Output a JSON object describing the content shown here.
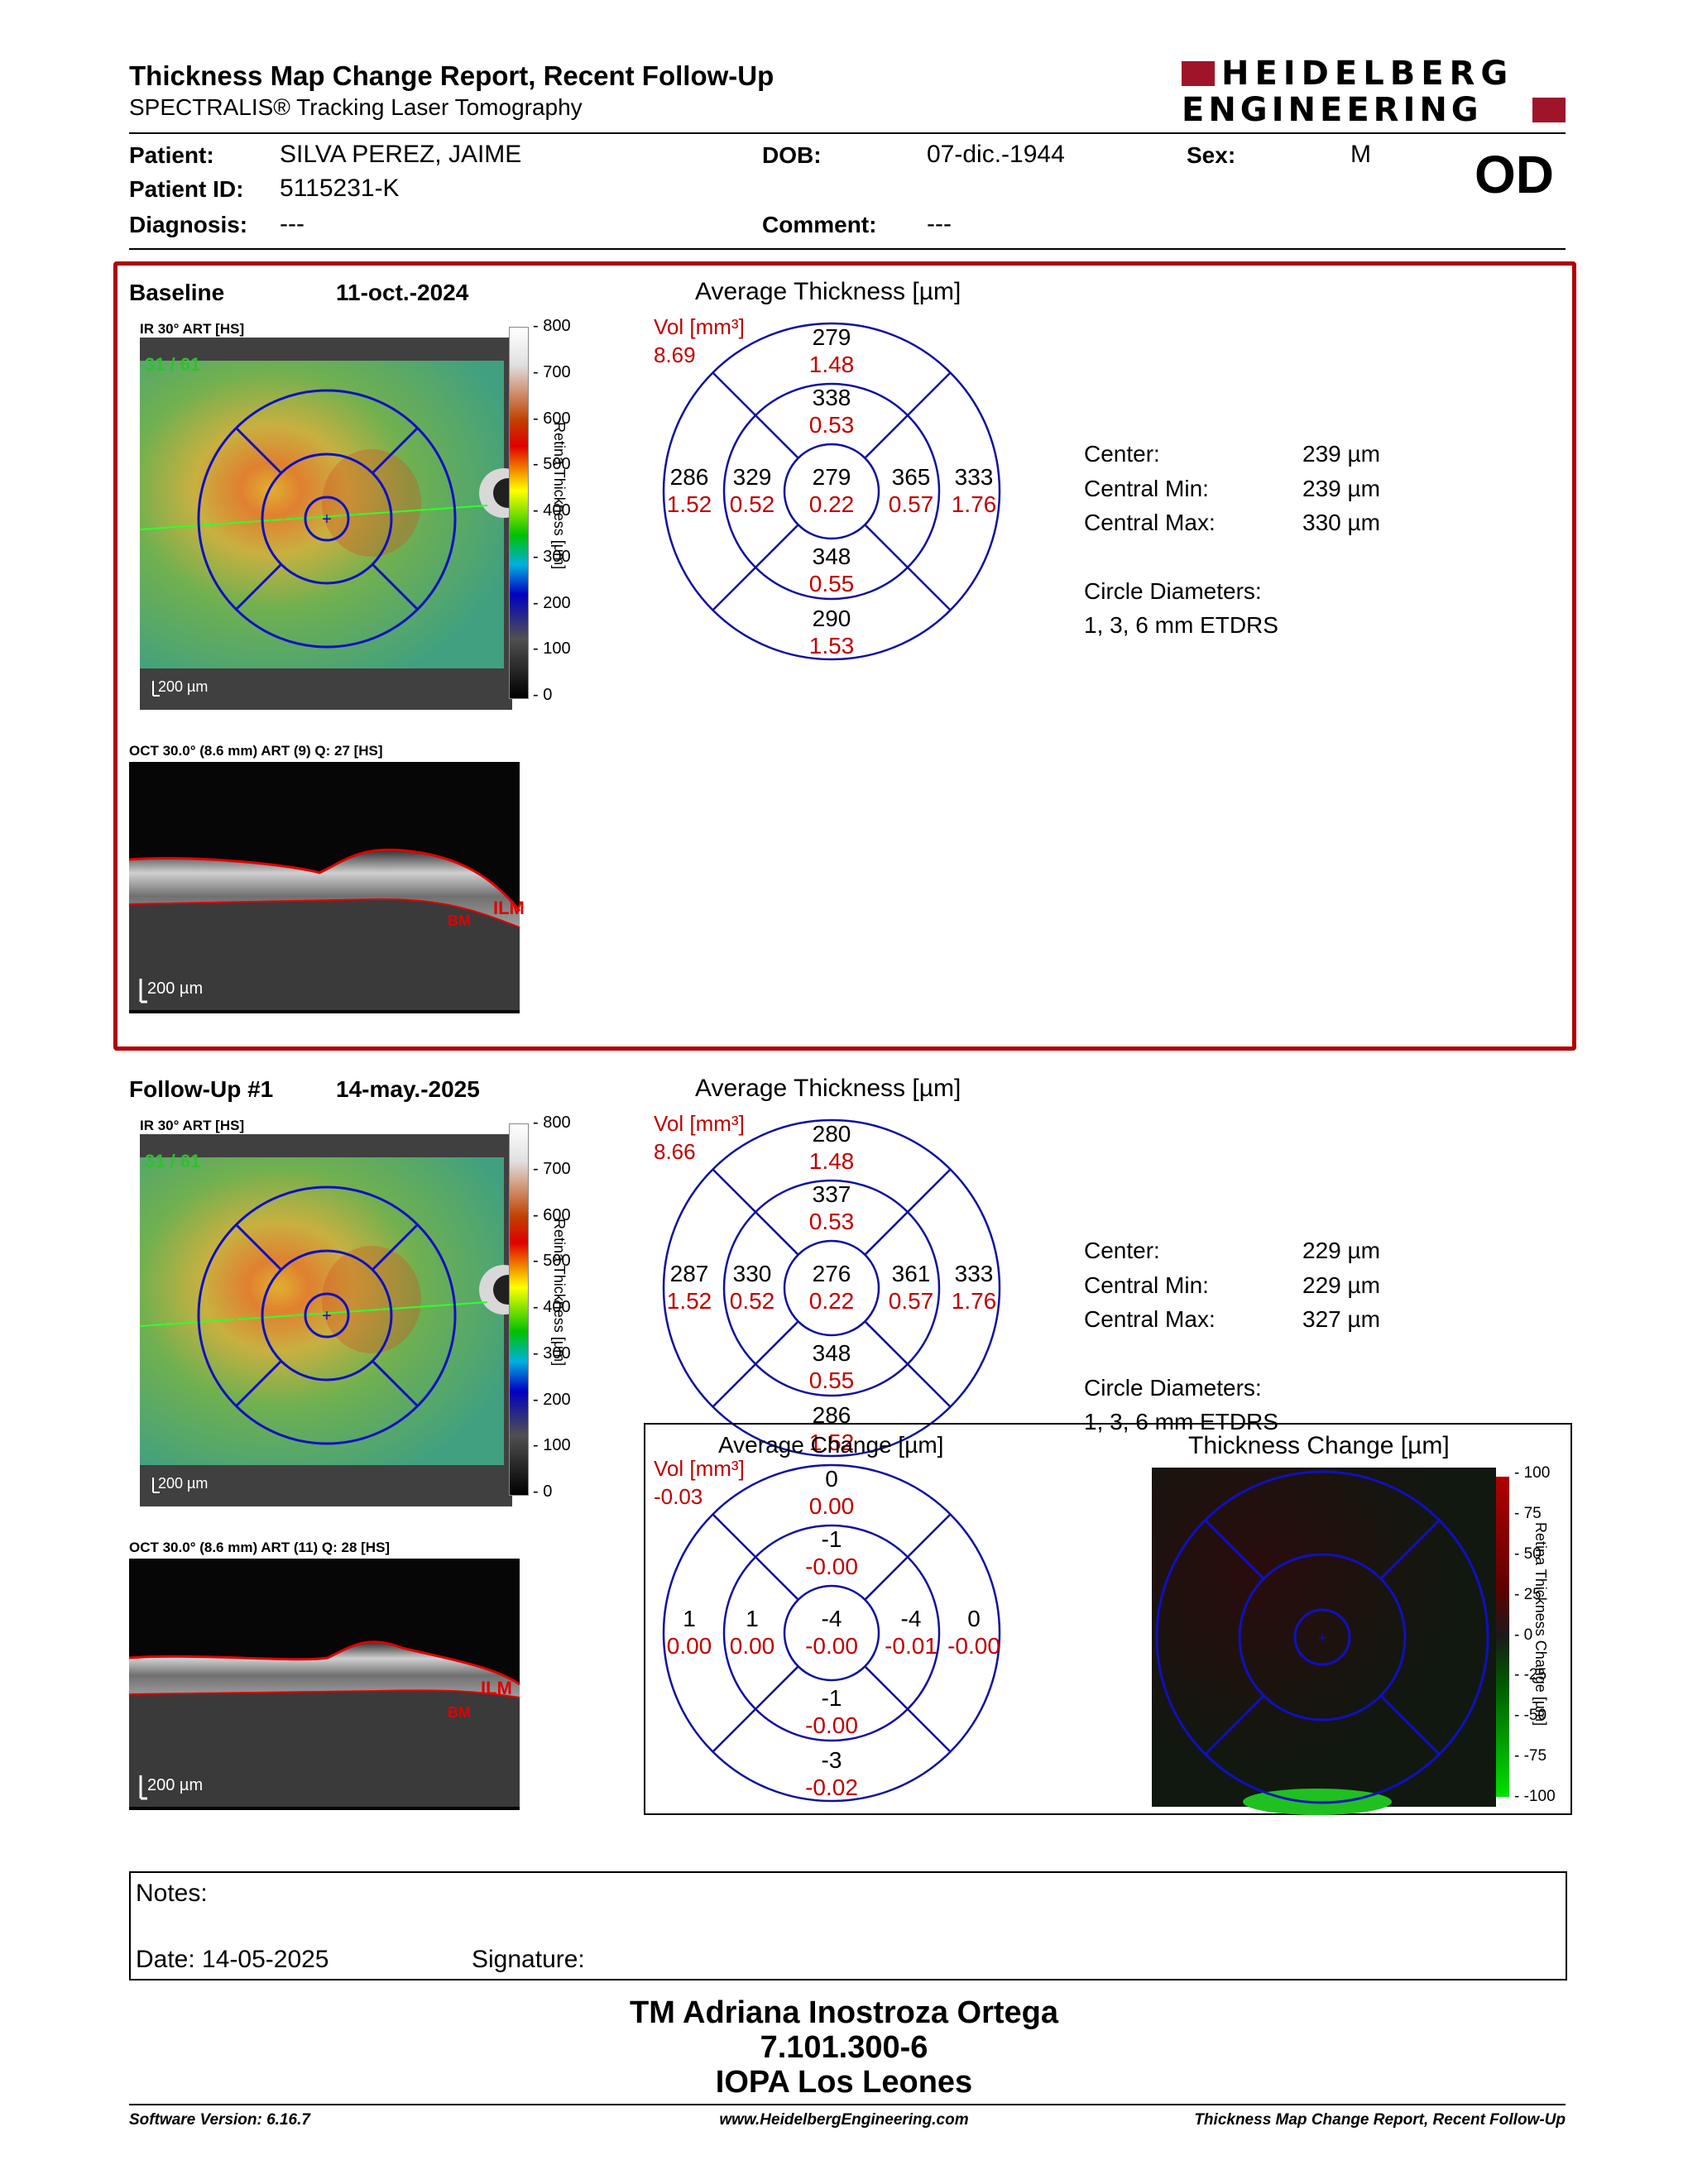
{
  "header": {
    "title": "Thickness Map Change Report, Recent Follow-Up",
    "subtitle": "SPECTRALIS® Tracking Laser Tomography",
    "logo_line1": "HEIDELBERG",
    "logo_line2": "ENGINEERING"
  },
  "patient": {
    "name_label": "Patient:",
    "name": "SILVA PEREZ, JAIME",
    "id_label": "Patient ID:",
    "id": "5115231-K",
    "diagnosis_label": "Diagnosis:",
    "diagnosis": "---",
    "dob_label": "DOB:",
    "dob": "07-dic.-1944",
    "comment_label": "Comment:",
    "comment": "---",
    "sex_label": "Sex:",
    "sex": "M",
    "eye": "OD"
  },
  "baseline": {
    "label": "Baseline",
    "date": "11-oct.-2024",
    "ir_label": "IR 30° ART [HS]",
    "ir_counter": "31 / 61",
    "scale_bar": "200 µm",
    "oct_label": "OCT 30.0° (8.6 mm) ART (9) Q: 27 [HS]",
    "oct_scale": "200 µm",
    "ilm": "ILM",
    "bm": "BM",
    "colorbar_ticks": [
      "800",
      "700",
      "600",
      "500",
      "400",
      "300",
      "200",
      "100",
      "0"
    ],
    "colorbar_title": "Retina Thickness [µm]",
    "chart_title": "Average Thickness [µm]",
    "vol_label": "Vol [mm³]",
    "vol_value": "8.69",
    "grid": {
      "outer_superior": {
        "t": "279",
        "v": "1.48"
      },
      "inner_superior": {
        "t": "338",
        "v": "0.53"
      },
      "outer_nasal_left": {
        "t": "286",
        "v": "1.52"
      },
      "inner_left": {
        "t": "329",
        "v": "0.52"
      },
      "center": {
        "t": "279",
        "v": "0.22"
      },
      "inner_right": {
        "t": "365",
        "v": "0.57"
      },
      "outer_right": {
        "t": "333",
        "v": "1.76"
      },
      "inner_inferior": {
        "t": "348",
        "v": "0.55"
      },
      "outer_inferior": {
        "t": "290",
        "v": "1.53"
      }
    },
    "stats": {
      "center_label": "Center:",
      "center": "239 µm",
      "min_label": "Central Min:",
      "min": "239 µm",
      "max_label": "Central Max:",
      "max": "330 µm",
      "diam_label": "Circle Diameters:",
      "diam": "1, 3, 6 mm ETDRS"
    }
  },
  "followup": {
    "label": "Follow-Up #1",
    "date": "14-may.-2025",
    "ir_label": "IR 30° ART [HS]",
    "ir_counter": "31 / 61",
    "scale_bar": "200 µm",
    "oct_label": "OCT 30.0° (8.6 mm) ART (11) Q: 28 [HS]",
    "oct_scale": "200 µm",
    "ilm": "ILM",
    "bm": "BM",
    "colorbar_ticks": [
      "800",
      "700",
      "600",
      "500",
      "400",
      "300",
      "200",
      "100",
      "0"
    ],
    "colorbar_title": "Retina Thickness [µm]",
    "chart_title": "Average Thickness [µm]",
    "vol_label": "Vol [mm³]",
    "vol_value": "8.66",
    "grid": {
      "outer_superior": {
        "t": "280",
        "v": "1.48"
      },
      "inner_superior": {
        "t": "337",
        "v": "0.53"
      },
      "outer_nasal_left": {
        "t": "287",
        "v": "1.52"
      },
      "inner_left": {
        "t": "330",
        "v": "0.52"
      },
      "center": {
        "t": "276",
        "v": "0.22"
      },
      "inner_right": {
        "t": "361",
        "v": "0.57"
      },
      "outer_right": {
        "t": "333",
        "v": "1.76"
      },
      "inner_inferior": {
        "t": "348",
        "v": "0.55"
      },
      "outer_inferior": {
        "t": "286",
        "v": "1.52"
      }
    },
    "stats": {
      "center_label": "Center:",
      "center": "229 µm",
      "min_label": "Central Min:",
      "min": "229 µm",
      "max_label": "Central Max:",
      "max": "327 µm",
      "diam_label": "Circle Diameters:",
      "diam": "1, 3, 6 mm ETDRS"
    }
  },
  "change": {
    "chart_title": "Average Change [µm]",
    "vol_label": "Vol [mm³]",
    "vol_value": "-0.03",
    "grid": {
      "outer_superior": {
        "t": "0",
        "v": "0.00"
      },
      "inner_superior": {
        "t": "-1",
        "v": "-0.00"
      },
      "outer_nasal_left": {
        "t": "1",
        "v": "0.00"
      },
      "inner_left": {
        "t": "1",
        "v": "0.00"
      },
      "center": {
        "t": "-4",
        "v": "-0.00"
      },
      "inner_right": {
        "t": "-4",
        "v": "-0.01"
      },
      "outer_right": {
        "t": "0",
        "v": "-0.00"
      },
      "inner_inferior": {
        "t": "-1",
        "v": "-0.00"
      },
      "outer_inferior": {
        "t": "-3",
        "v": "-0.02"
      }
    },
    "map_title": "Thickness Change [µm]",
    "map_ticks": [
      "100",
      "75",
      "50",
      "25",
      "0",
      "-25",
      "-50",
      "-75",
      "-100"
    ],
    "map_colorbar_title": "Retina Thickness Change [µm]"
  },
  "notes": {
    "notes_label": "Notes:",
    "date_label": "Date: 14-05-2025",
    "signature_label": "Signature:"
  },
  "signature_block": {
    "line1": "TM Adriana Inostroza Ortega",
    "line2": "7.101.300-6",
    "line3": "IOPA Los Leones"
  },
  "footer": {
    "software": "Software Version: 6.16.7",
    "url": "www.HeidelbergEngineering.com",
    "report": "Thickness Map Change Report, Recent Follow-Up"
  },
  "colors": {
    "frame_red": "#b00000",
    "value_red": "#c00000",
    "grid_blue": "#1010a0",
    "logo_red": "#a0142a"
  }
}
